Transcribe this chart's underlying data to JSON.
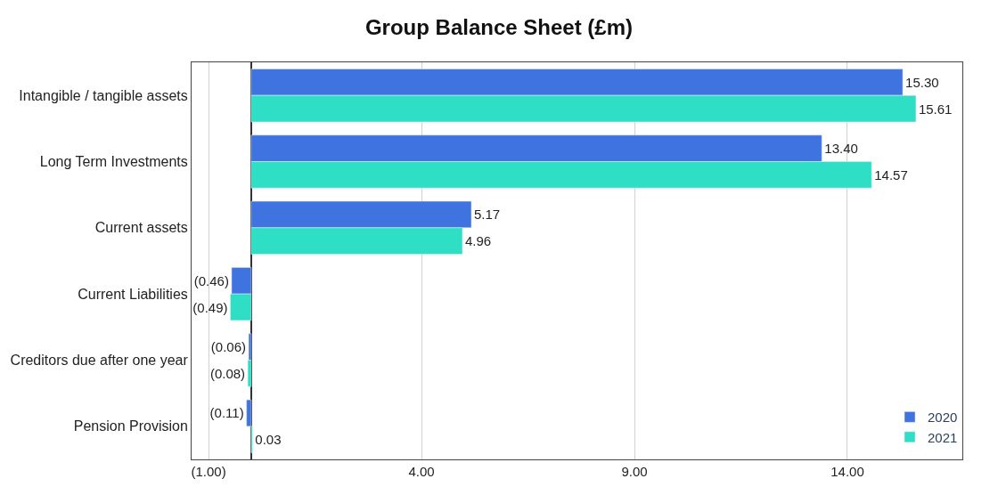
{
  "chart_data": {
    "type": "bar",
    "orientation": "horizontal",
    "title": "Group Balance Sheet (£m)",
    "categories": [
      "Intangible / tangible assets",
      "Long Term Investments",
      "Current assets",
      "Current Liabilities",
      "Creditors due after one year",
      "Pension Provision"
    ],
    "series": [
      {
        "name": "2020",
        "color": "#3f74e0",
        "values": [
          15.3,
          13.4,
          5.17,
          -0.46,
          -0.06,
          -0.11
        ],
        "value_labels": [
          "15.30",
          "13.40",
          "5.17",
          "(0.46)",
          "(0.06)",
          "(0.11)"
        ]
      },
      {
        "name": "2021",
        "color": "#2edfc6",
        "values": [
          15.61,
          14.57,
          4.96,
          -0.49,
          -0.08,
          0.03
        ],
        "value_labels": [
          "15.61",
          "14.57",
          "4.96",
          "(0.49)",
          "(0.08)",
          "0.03"
        ]
      }
    ],
    "xlim": [
      -1.4,
      16.7
    ],
    "xticks": [
      {
        "value": -1,
        "label": "(1.00)"
      },
      {
        "value": 4,
        "label": "4.00"
      },
      {
        "value": 9,
        "label": "9.00"
      },
      {
        "value": 14,
        "label": "14.00"
      }
    ],
    "grid": "x",
    "legend": "bottom right"
  }
}
